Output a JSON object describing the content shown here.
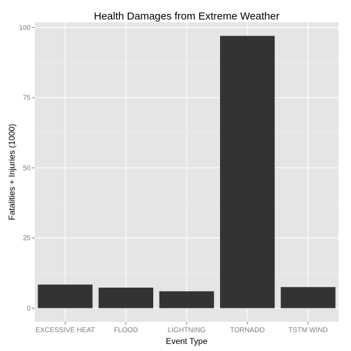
{
  "chart_data": {
    "type": "bar",
    "title": "Health Damages from Extreme Weather",
    "xlabel": "Event Type",
    "ylabel": "Fatalities + Injuries (1000)",
    "categories": [
      "EXCESSIVE HEAT",
      "FLOOD",
      "LIGHTNING",
      "TORNADO",
      "TSTM WIND"
    ],
    "values": [
      8.4,
      7.3,
      6.0,
      97.0,
      7.5
    ],
    "yticks": [
      0,
      25,
      50,
      75,
      100
    ],
    "ylim": [
      -4.85,
      101.85
    ],
    "grid": true,
    "legend": "none",
    "colors": {
      "panel": "#e5e5e5",
      "grid_major": "#ffffff",
      "grid_minor": "#f2f2f2",
      "bar": "#333333",
      "tick_label": "#7f7f7f"
    }
  }
}
